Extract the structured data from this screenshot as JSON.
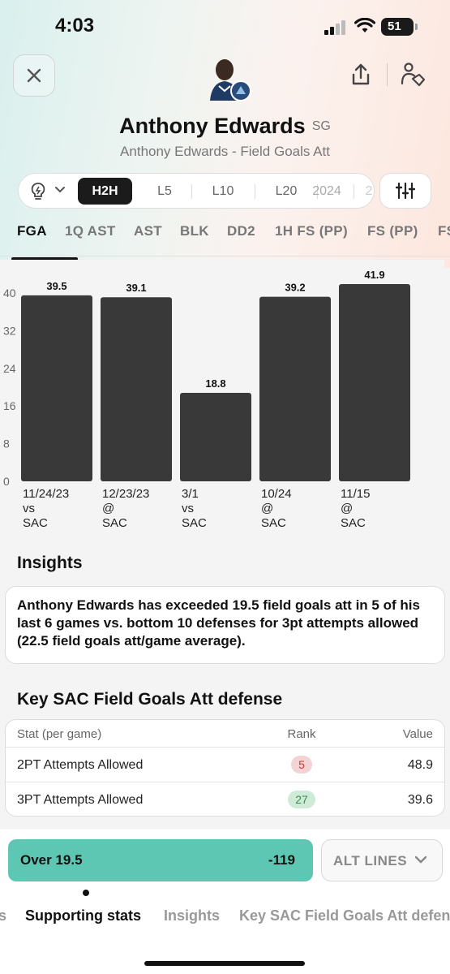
{
  "status": {
    "time": "4:03",
    "battery": "51"
  },
  "header": {
    "player_name": "Anthony Edwards",
    "position": "SG",
    "subtitle": "Anthony Edwards - Field Goals Att"
  },
  "filters": {
    "active": "H2H",
    "segments": [
      "L5",
      "L10",
      "L20",
      "2024",
      "2"
    ]
  },
  "stat_tabs": [
    "FGA",
    "1Q AST",
    "AST",
    "BLK",
    "DD2",
    "1H FS (PP)",
    "FS (PP)",
    "FS"
  ],
  "chart_data": {
    "type": "bar",
    "categories": [
      "11/24/23 vs SAC",
      "12/23/23 @ SAC",
      "3/1 vs SAC",
      "10/24 @ SAC",
      "11/15 @ SAC"
    ],
    "x_lines": [
      [
        "11/24/23",
        "vs",
        "SAC"
      ],
      [
        "12/23/23",
        "@",
        "SAC"
      ],
      [
        "3/1",
        "vs",
        "SAC"
      ],
      [
        "10/24",
        "@",
        "SAC"
      ],
      [
        "11/15",
        "@",
        "SAC"
      ]
    ],
    "values": [
      39.5,
      39.1,
      18.8,
      39.2,
      41.9
    ],
    "y_ticks": [
      0,
      8,
      16,
      24,
      32,
      40
    ],
    "ylim": [
      0,
      41.9
    ],
    "bar_color": "#393939",
    "title": "",
    "xlabel": "",
    "ylabel": ""
  },
  "insights": {
    "title": "Insights",
    "text": "Anthony Edwards has exceeded 19.5 field goals att in 5 of his last 6 games vs. bottom 10 defenses for 3pt attempts allowed (22.5 field goals att/game average)."
  },
  "defense": {
    "title": "Key SAC Field Goals Att defense",
    "headers": {
      "stat": "Stat (per game)",
      "rank": "Rank",
      "value": "Value"
    },
    "rows": [
      {
        "stat": "2PT Attempts Allowed",
        "rank": "5",
        "value": "48.9"
      },
      {
        "stat": "3PT Attempts Allowed",
        "rank": "27",
        "value": "39.6"
      }
    ]
  },
  "bet": {
    "label": "Over 19.5",
    "odds": "-119",
    "color": "#5ec7b3"
  },
  "alt_lines": {
    "label": "ALT LINES"
  },
  "section_tabs": [
    "s",
    "Supporting stats",
    "Insights",
    "Key SAC Field Goals Att defense"
  ]
}
